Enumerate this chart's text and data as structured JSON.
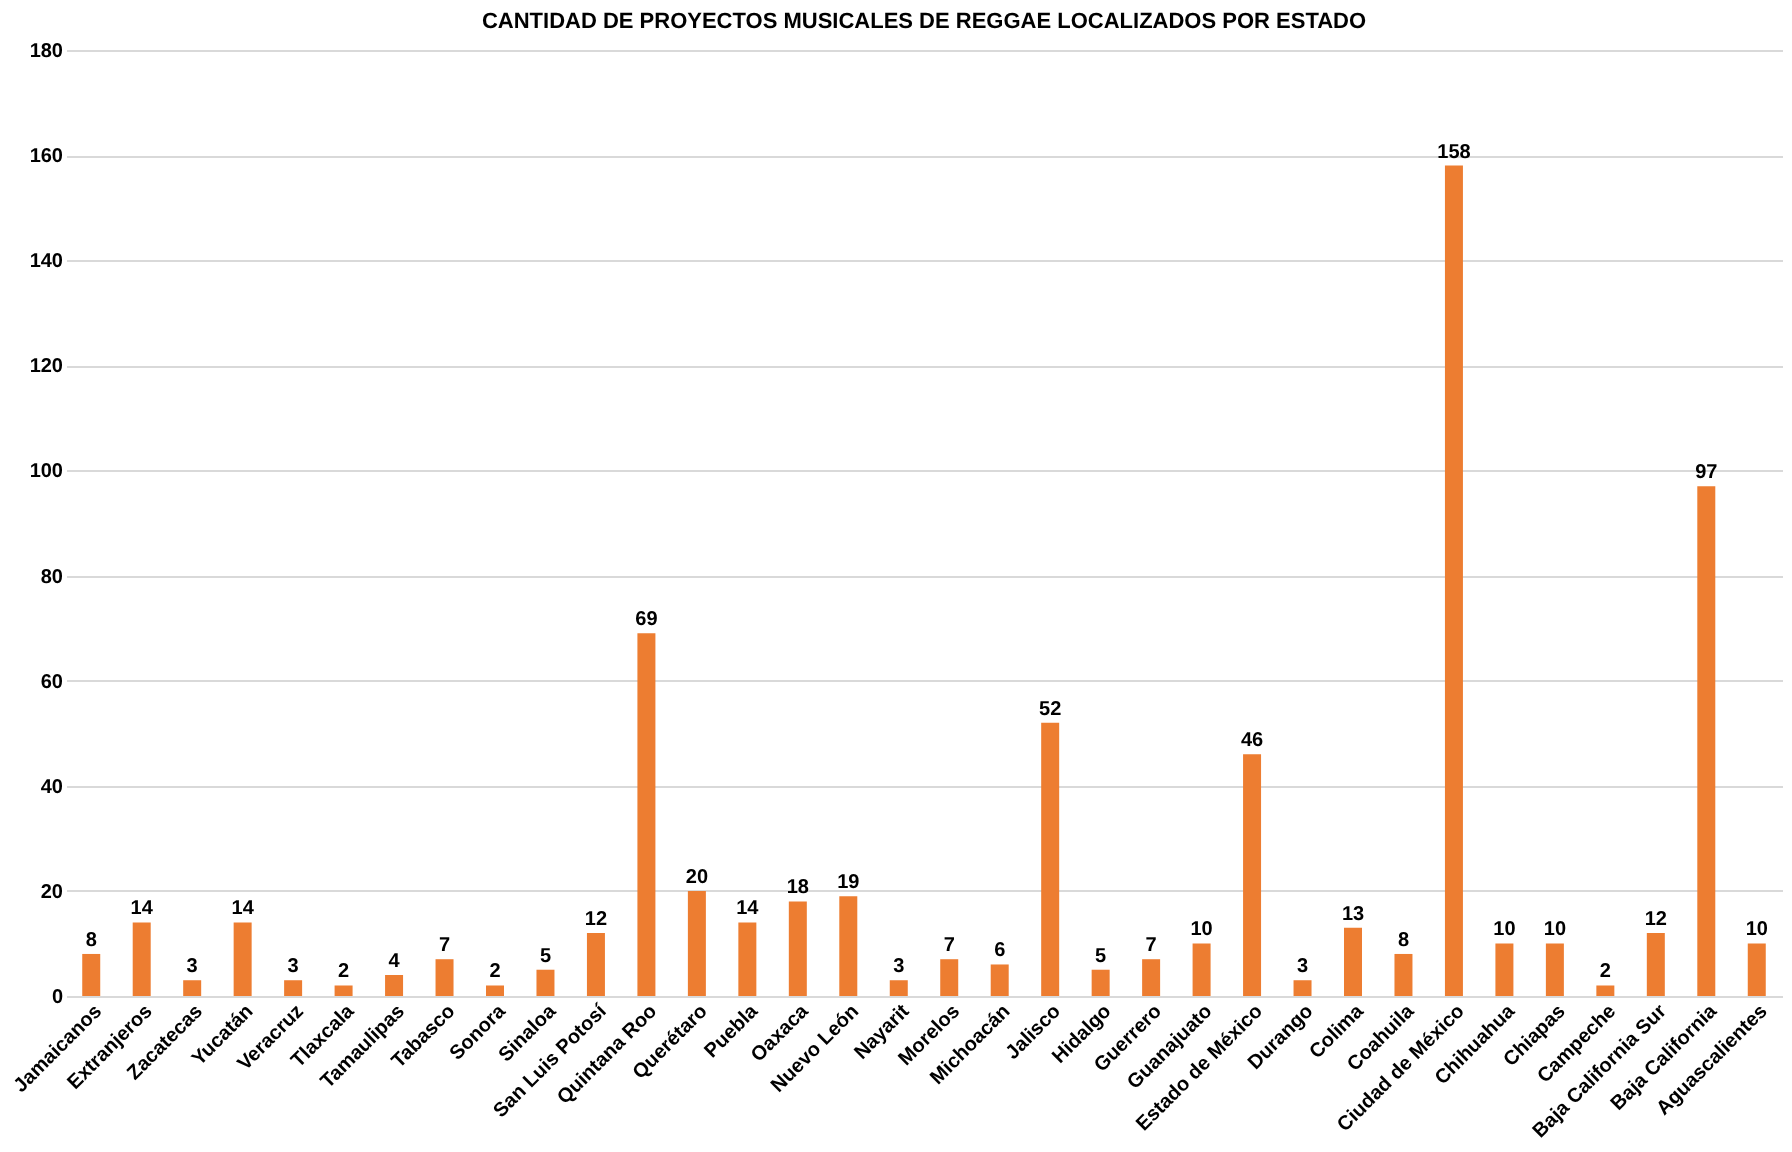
{
  "chart_data": {
    "type": "bar",
    "title": "CANTIDAD DE PROYECTOS MUSICALES DE REGGAE LOCALIZADOS POR ESTADO",
    "categories": [
      "Jamaicanos",
      "Extranjeros",
      "Zacatecas",
      "Yucatán",
      "Veracruz",
      "Tlaxcala",
      "Tamaulipas",
      "Tabasco",
      "Sonora",
      "Sinaloa",
      "San Luis Potosí",
      "Quintana Roo",
      "Querétaro",
      "Puebla",
      "Oaxaca",
      "Nuevo León",
      "Nayarit",
      "Morelos",
      "Michoacán",
      "Jalisco",
      "Hidalgo",
      "Guerrero",
      "Guanajuato",
      "Estado de México",
      "Durango",
      "Colima",
      "Coahuila",
      "Ciudad de México",
      "Chihuahua",
      "Chiapas",
      "Campeche",
      "Baja California Sur",
      "Baja California",
      "Aguascalientes"
    ],
    "values": [
      8,
      14,
      3,
      14,
      3,
      2,
      4,
      7,
      2,
      5,
      12,
      69,
      20,
      14,
      18,
      19,
      3,
      7,
      6,
      52,
      5,
      7,
      10,
      46,
      3,
      13,
      8,
      158,
      10,
      10,
      2,
      12,
      97,
      10
    ],
    "color": "#ed7d31",
    "ylim": [
      0,
      180
    ],
    "yticks": [
      0,
      20,
      40,
      60,
      80,
      100,
      120,
      140,
      160,
      180
    ],
    "grid": "y",
    "data_labels": true
  }
}
